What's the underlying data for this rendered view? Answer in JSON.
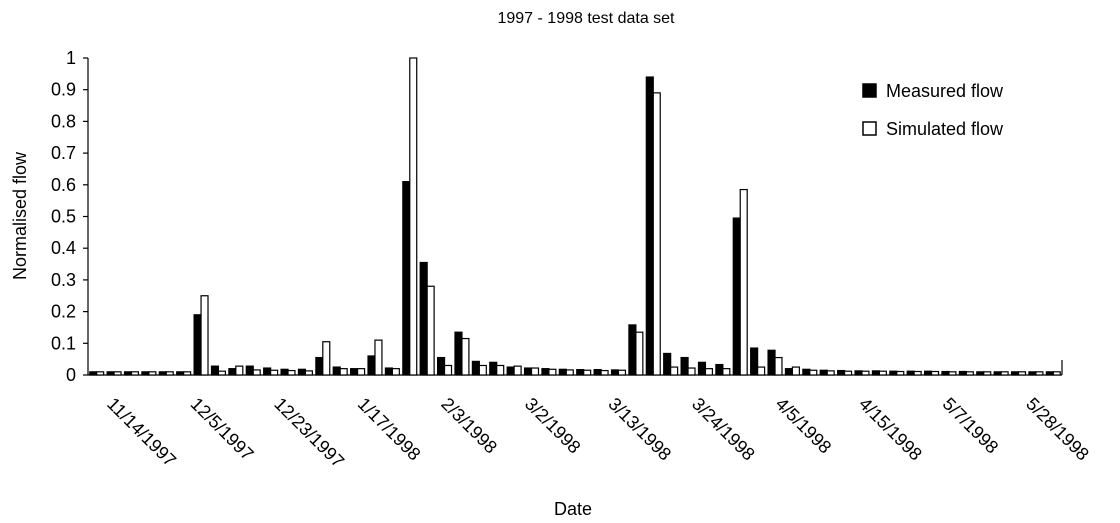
{
  "chart_data": {
    "type": "bar",
    "title": "1997 - 1998 test data set",
    "xlabel": "Date",
    "ylabel": "Normalised flow",
    "ylim": [
      0,
      1
    ],
    "yticks": [
      "0",
      "0.1",
      "0.2",
      "0.3",
      "0.4",
      "0.5",
      "0.6",
      "0.7",
      "0.8",
      "0.9",
      "1"
    ],
    "xtick_labels": [
      "11/14/1997",
      "12/5/1997",
      "12/23/1997",
      "1/17/1998",
      "2/3/1998",
      "3/2/1998",
      "3/13/1998",
      "3/24/1998",
      "4/5/1998",
      "4/15/1998",
      "5/7/1998",
      "5/28/1998"
    ],
    "legend_position": "top-right",
    "grid": false,
    "series": [
      {
        "name": "Measured flow",
        "color": "#000000",
        "values": [
          0.01,
          0.01,
          0.01,
          0.01,
          0.01,
          0.01,
          0.19,
          0.028,
          0.02,
          0.028,
          0.022,
          0.018,
          0.018,
          0.055,
          0.025,
          0.02,
          0.06,
          0.022,
          0.61,
          0.355,
          0.055,
          0.135,
          0.043,
          0.04,
          0.025,
          0.022,
          0.02,
          0.018,
          0.017,
          0.017,
          0.016,
          0.158,
          0.94,
          0.068,
          0.055,
          0.04,
          0.033,
          0.495,
          0.085,
          0.078,
          0.02,
          0.018,
          0.015,
          0.014,
          0.013,
          0.013,
          0.012,
          0.012,
          0.012,
          0.011,
          0.011,
          0.01,
          0.01,
          0.01,
          0.01,
          0.01
        ]
      },
      {
        "name": "Simulated flow",
        "color": "#ffffff",
        "values": [
          0.01,
          0.01,
          0.01,
          0.01,
          0.01,
          0.01,
          0.25,
          0.012,
          0.028,
          0.016,
          0.015,
          0.014,
          0.013,
          0.105,
          0.02,
          0.02,
          0.11,
          0.02,
          1.0,
          0.28,
          0.03,
          0.115,
          0.03,
          0.03,
          0.028,
          0.022,
          0.018,
          0.016,
          0.015,
          0.014,
          0.015,
          0.135,
          0.89,
          0.025,
          0.022,
          0.02,
          0.02,
          0.585,
          0.025,
          0.055,
          0.025,
          0.015,
          0.013,
          0.012,
          0.012,
          0.012,
          0.011,
          0.011,
          0.011,
          0.01,
          0.01,
          0.01,
          0.01,
          0.01,
          0.01,
          0.01
        ]
      }
    ]
  }
}
